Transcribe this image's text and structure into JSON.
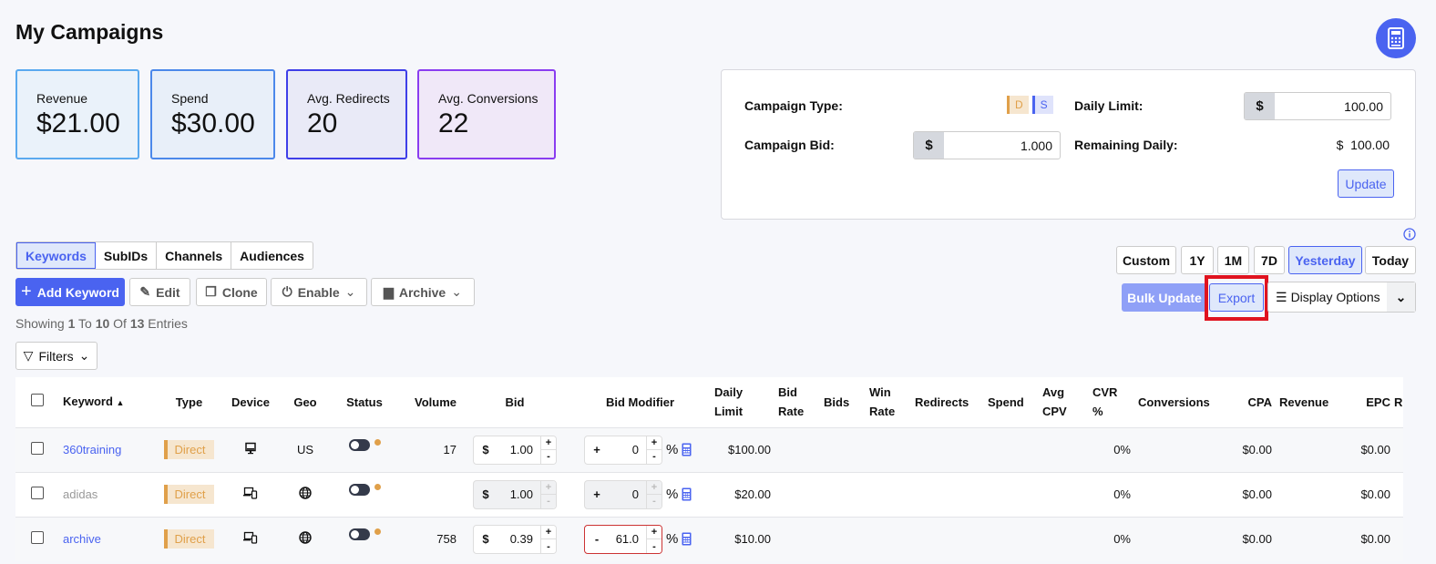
{
  "page": {
    "title": "My Campaigns"
  },
  "stats": [
    {
      "label": "Revenue",
      "value": "$21.00",
      "border": "#5aa9ef",
      "bg": "#eaf2fa"
    },
    {
      "label": "Spend",
      "value": "$30.00",
      "border": "#4c88ea",
      "bg": "#e8eff9"
    },
    {
      "label": "Avg. Redirects",
      "value": "20",
      "border": "#3f3fe8",
      "bg": "#e9eaf7"
    },
    {
      "label": "Avg. Conversions",
      "value": "22",
      "border": "#8a3df0",
      "bg": "#f0e8f8"
    }
  ],
  "settings": {
    "campaign_type_label": "Campaign Type:",
    "type_d": "D",
    "type_s": "S",
    "daily_limit_label": "Daily Limit:",
    "daily_limit_currency": "$",
    "daily_limit_value": "100.00",
    "campaign_bid_label": "Campaign Bid:",
    "campaign_bid_currency": "$",
    "campaign_bid_value": "1.000",
    "remaining_daily_label": "Remaining Daily:",
    "remaining_daily_value": "$  100.00",
    "update_label": "Update"
  },
  "tabs": [
    "Keywords",
    "SubIDs",
    "Channels",
    "Audiences"
  ],
  "toolbar": {
    "add": "Add Keyword",
    "edit": "Edit",
    "clone": "Clone",
    "enable": "Enable",
    "archive": "Archive",
    "filters": "Filters"
  },
  "entries": {
    "pre": "Showing ",
    "from": "1",
    "to_word": " To ",
    "to": "10",
    "of_word": " Of ",
    "total": "13",
    "post": " Entries"
  },
  "ranges": [
    "Custom",
    "1Y",
    "1M",
    "7D",
    "Yesterday",
    "Today"
  ],
  "active_range": "Yesterday",
  "actions": {
    "bulk_update": "Bulk Update",
    "export": "Export",
    "display_options": "Display Options"
  },
  "table": {
    "headers": [
      "Keyword",
      "Type",
      "Device",
      "Geo",
      "Status",
      "Volume",
      "Bid",
      "Bid Modifier",
      "Daily Limit",
      "Bid Rate",
      "Bids",
      "Win Rate",
      "Redirects",
      "Spend",
      "Avg CPV",
      "CVR %",
      "Conversions",
      "CPA",
      "Revenue",
      "EPC",
      "ROI"
    ],
    "rows": [
      {
        "keyword": "360training",
        "type": "Direct",
        "device": "desktop",
        "geo": "US",
        "volume": "17",
        "bid": "1.00",
        "mod_sign": "+",
        "mod": "0",
        "daily": "$100.00",
        "cvr": "0%",
        "cpa": "$0.00",
        "epc": "$0.00"
      },
      {
        "keyword": "adidas",
        "type": "Direct",
        "device": "multi-device",
        "geo": "globe",
        "volume": "",
        "bid": "1.00",
        "mod_sign": "+",
        "mod": "0",
        "daily": "$20.00",
        "cvr": "0%",
        "cpa": "$0.00",
        "epc": "$0.00"
      },
      {
        "keyword": "archive",
        "type": "Direct",
        "device": "multi-device",
        "geo": "globe",
        "volume": "758",
        "bid": "0.39",
        "mod_sign": "-",
        "mod": "61.0",
        "daily": "$10.00",
        "cvr": "0%",
        "cpa": "$0.00",
        "epc": "$0.00"
      }
    ]
  }
}
